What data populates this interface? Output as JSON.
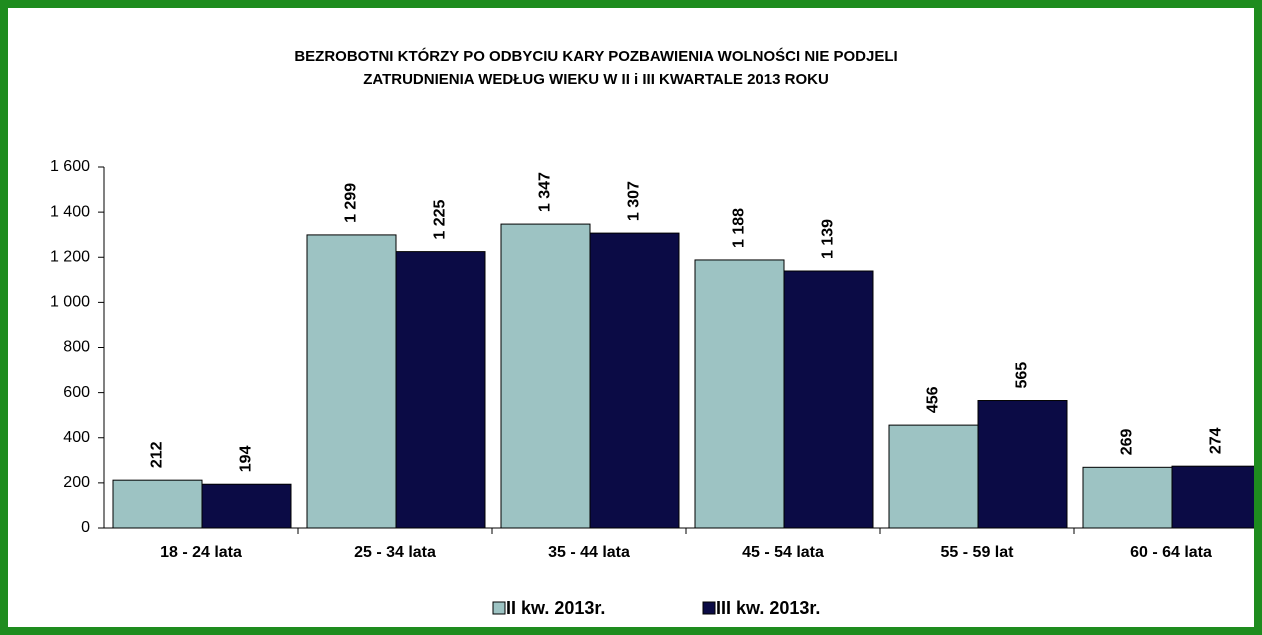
{
  "chart_data": {
    "type": "bar",
    "title": [
      "BEZROBOTNI KTÓRZY PO ODBYCIU KARY POZBAWIENIA WOLNOŚCI NIE PODJELI",
      "ZATRUDNIENIA WEDŁUG  WIEKU W  II i III KWARTALE 2013 ROKU"
    ],
    "categories": [
      "18 - 24 lata",
      "25 - 34 lata",
      "35 - 44 lata",
      "45 - 54 lata",
      "55 - 59 lat",
      "60 - 64 lata"
    ],
    "series": [
      {
        "name": "II kw. 2013r.",
        "color": "#9dc3c3",
        "values": [
          212,
          1299,
          1347,
          1188,
          456,
          269
        ],
        "value_labels": [
          "212",
          "1 299",
          "1 347",
          "1 188",
          "456",
          "269"
        ]
      },
      {
        "name": "III kw. 2013r.",
        "color": "#0b0b45",
        "values": [
          194,
          1225,
          1307,
          1139,
          565,
          274
        ],
        "value_labels": [
          "194",
          "1 225",
          "1 307",
          "1 139",
          "565",
          "274"
        ]
      }
    ],
    "ylim": [
      0,
      1600
    ],
    "yticks": [
      0,
      200,
      400,
      600,
      800,
      {
        "value": 1000,
        "label": "1 000"
      },
      {
        "value": 1200,
        "label": "1 200"
      },
      {
        "value": 1400,
        "label": "1 400"
      },
      {
        "value": 1600,
        "label": "1 600"
      }
    ],
    "grid": false,
    "legend": "bottom"
  }
}
